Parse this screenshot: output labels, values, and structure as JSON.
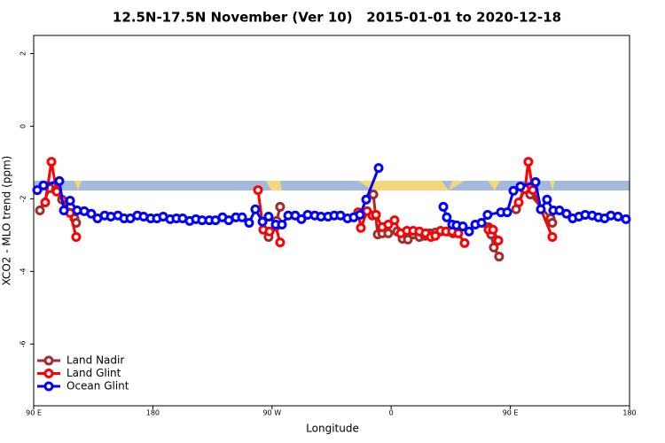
{
  "chart_data": {
    "type": "line",
    "title": "12.5N-17.5N November (Ver 10)   2015-01-01 to 2020-12-18",
    "xlabel": "Longitude",
    "ylabel": "XCO2 - MLO trend (ppm)",
    "xlim": [
      90,
      540
    ],
    "xticks": [
      {
        "value": 90,
        "label": "90 E"
      },
      {
        "value": 180,
        "label": "180"
      },
      {
        "value": 270,
        "label": "90 W"
      },
      {
        "value": 360,
        "label": "0"
      },
      {
        "value": 450,
        "label": "90 E"
      },
      {
        "value": 540,
        "label": "180"
      }
    ],
    "ylim": [
      -7.7,
      2.5
    ],
    "yticks": [
      -6,
      -4,
      -2,
      0,
      2
    ],
    "legend": "bottom-left",
    "series": [
      {
        "name": "Land Nadir",
        "color": "#a52a2a",
        "x": [
          94.7,
          102.1,
          106.7,
          111.4,
          120.8,
          122.1,
          null,
          267.4,
          273.5,
          276.1,
          null,
          346.5,
          349.8,
          353.2,
          357.8,
          364.5,
          368.6,
          372.6,
          376.6,
          381.3,
          385.3,
          389.3,
          393.3,
          397.3,
          402.7,
          406.7,
          null,
          433.5,
          435.5,
          437.5,
          441.5,
          null,
          454.3,
          460.3,
          465.0,
          480.4,
          481.7
        ],
        "values": [
          -2.32,
          -1.71,
          -1.76,
          -2.02,
          -2.54,
          -2.66,
          null,
          -3.05,
          -2.61,
          -2.22,
          null,
          -1.88,
          -2.98,
          -2.95,
          -2.95,
          -2.9,
          -3.1,
          -3.12,
          -2.98,
          -3.05,
          -3.02,
          -2.95,
          -2.93,
          -2.9,
          -2.9,
          -2.95,
          null,
          -2.78,
          -2.98,
          -3.34,
          -3.59,
          null,
          -2.29,
          -1.73,
          -1.88,
          -2.54,
          -2.66
        ]
      },
      {
        "name": "Land Glint",
        "color": "#ff0000",
        "x": [
          98.7,
          103.4,
          107.4,
          117.5,
          122.1,
          null,
          259.4,
          263.4,
          268.1,
          272.8,
          276.1,
          null,
          335.1,
          337.1,
          341.8,
          345.8,
          348.5,
          353.2,
          357.8,
          362.5,
          367.2,
          371.9,
          376.6,
          381.3,
          386.0,
          390.0,
          393.3,
          397.3,
          401.4,
          406.1,
          410.7,
          415.4,
          null,
          433.5,
          436.9,
          440.9,
          null,
          456.3,
          461.0,
          463.6,
          467.0,
          481.7
        ],
        "values": [
          -2.1,
          -0.98,
          -1.8,
          -2.39,
          -3.05,
          null,
          -1.76,
          -2.85,
          -2.9,
          -2.76,
          -3.2,
          null,
          -2.37,
          -2.8,
          -2.34,
          -2.46,
          -2.44,
          -2.78,
          -2.71,
          -2.59,
          -2.95,
          -2.88,
          -2.88,
          -2.9,
          -2.95,
          -3.05,
          -3.02,
          -2.88,
          -2.9,
          -2.9,
          -2.95,
          -3.22,
          null,
          -2.85,
          -2.85,
          -3.15,
          null,
          -2.1,
          -1.73,
          -0.98,
          -1.76,
          -3.05
        ]
      },
      {
        "name": "Ocean Glint",
        "color": "#0000ff",
        "x": [
          92.7,
          97.4,
          109.4,
          112.8,
          117.5,
          122.8,
          128.2,
          133.5,
          138.2,
          143.6,
          148.3,
          153.6,
          158.3,
          163.0,
          168.3,
          173.0,
          178.4,
          183.1,
          187.8,
          193.1,
          197.8,
          202.5,
          207.8,
          212.5,
          217.2,
          222.6,
          227.3,
          232.6,
          237.3,
          242.7,
          247.4,
          252.7,
          257.4,
          262.8,
          267.4,
          272.8,
          277.5,
          282.2,
          287.5,
          292.2,
          296.9,
          302.3,
          307.0,
          312.3,
          317.0,
          321.7,
          327.0,
          331.7,
          336.4,
          341.1,
          350.5,
          null,
          399.4,
          402.0,
          406.1,
          409.4,
          414.1,
          418.8,
          423.5,
          428.2,
          432.8,
          442.9,
          447.6,
          452.3,
          457.6,
          469.0,
          473.0,
          477.7,
          482.4,
          487.1,
          492.4,
          497.1,
          501.8,
          506.5,
          511.8,
          516.5,
          521.2,
          525.9,
          531.3,
          537.3
        ],
        "values": [
          -1.76,
          -1.63,
          -1.51,
          -2.32,
          -2.05,
          -2.32,
          -2.34,
          -2.41,
          -2.54,
          -2.46,
          -2.49,
          -2.46,
          -2.54,
          -2.54,
          -2.46,
          -2.49,
          -2.54,
          -2.54,
          -2.49,
          -2.56,
          -2.54,
          -2.54,
          -2.61,
          -2.56,
          -2.59,
          -2.59,
          -2.59,
          -2.51,
          -2.59,
          -2.51,
          -2.51,
          -2.66,
          -2.29,
          -2.63,
          -2.49,
          -2.71,
          -2.71,
          -2.46,
          -2.46,
          -2.56,
          -2.44,
          -2.46,
          -2.49,
          -2.49,
          -2.46,
          -2.46,
          -2.54,
          -2.51,
          -2.44,
          -2.02,
          -1.15,
          null,
          -2.22,
          -2.51,
          -2.71,
          -2.73,
          -2.76,
          -2.9,
          -2.71,
          -2.66,
          -2.44,
          -2.37,
          -2.37,
          -1.78,
          -1.66,
          -1.54,
          -2.29,
          -2.02,
          -2.32,
          -2.32,
          -2.41,
          -2.54,
          -2.49,
          -2.44,
          -2.46,
          -2.51,
          -2.54,
          -2.46,
          -2.49,
          -2.56
        ]
      }
    ]
  }
}
